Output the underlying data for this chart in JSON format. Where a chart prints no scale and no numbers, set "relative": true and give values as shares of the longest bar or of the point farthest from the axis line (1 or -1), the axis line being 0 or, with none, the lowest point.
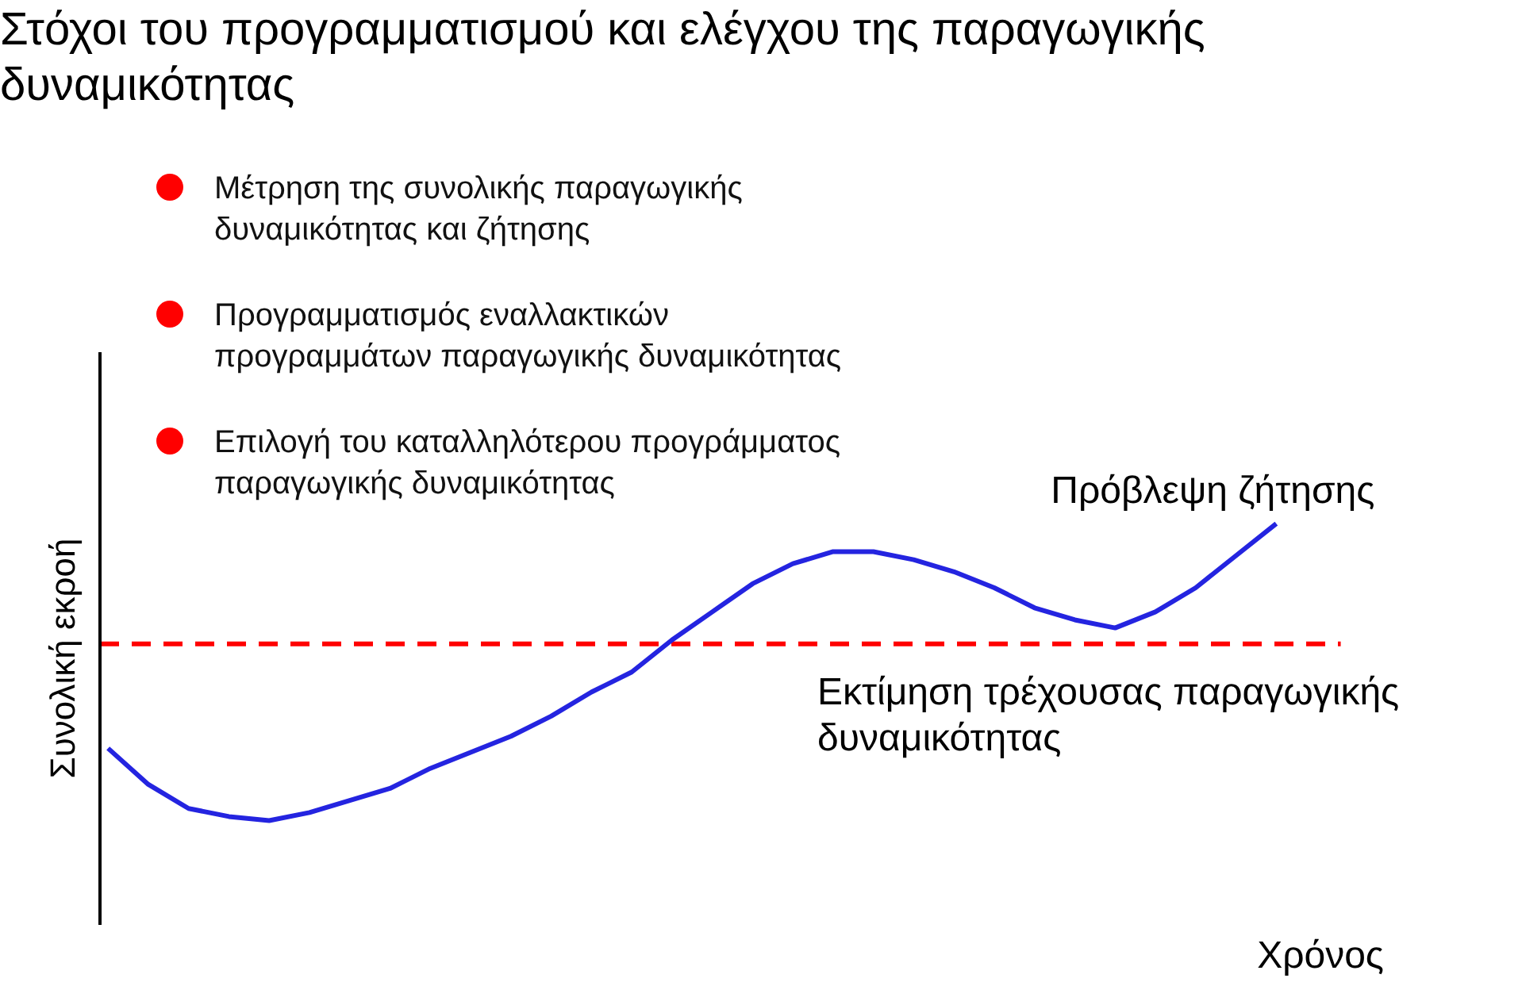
{
  "chart_data": {
    "type": "line",
    "title": "Στόχοι του προγραμματισμού και ελέγχου της παραγωγικής δυναμικότητας",
    "xlabel": "Χρόνος",
    "ylabel": "Συνολική εκροή",
    "relative": true,
    "marker": "none",
    "line_style": "solid",
    "categories": [
      null,
      null,
      null,
      null,
      null,
      null,
      null,
      null,
      null,
      null,
      null,
      null,
      null,
      null,
      null,
      null,
      null,
      null,
      null,
      null,
      null,
      null,
      null,
      null,
      null,
      null,
      null,
      null,
      null,
      null,
      null,
      null,
      null,
      null,
      null
    ],
    "series": [
      {
        "color": "#2424e0",
        "values": [
          0.44,
          0.35,
          0.29,
          0.27,
          0.26,
          0.28,
          0.31,
          0.34,
          0.39,
          0.43,
          0.47,
          0.52,
          0.58,
          0.63,
          0.71,
          0.78,
          0.85,
          0.9,
          0.93,
          0.93,
          0.91,
          0.88,
          0.84,
          0.79,
          0.76,
          0.74,
          0.78,
          0.84,
          0.92,
          1.0,
          null,
          null,
          null,
          null,
          null
        ]
      }
    ],
    "ref_lines": [
      {
        "axis": "y",
        "value": 0.7,
        "label": "Εκτίμηση τρέχουσας παραγωγικής δυναμικότητας",
        "color": "#ff0000",
        "line_style": "dashed"
      }
    ],
    "annotations": [
      "Μέτρηση της συνολικής παραγωγικής δυναμικότητας και ζήτησης",
      "Προγραμματισμός εναλλακτικών προγραμμάτων παραγωγικής δυναμικότητας",
      "Επιλογή του καταλληλότερου προγράμματος παραγωγικής δυναμικότητας",
      "Πρόβλεψη ζήτησης"
    ]
  }
}
